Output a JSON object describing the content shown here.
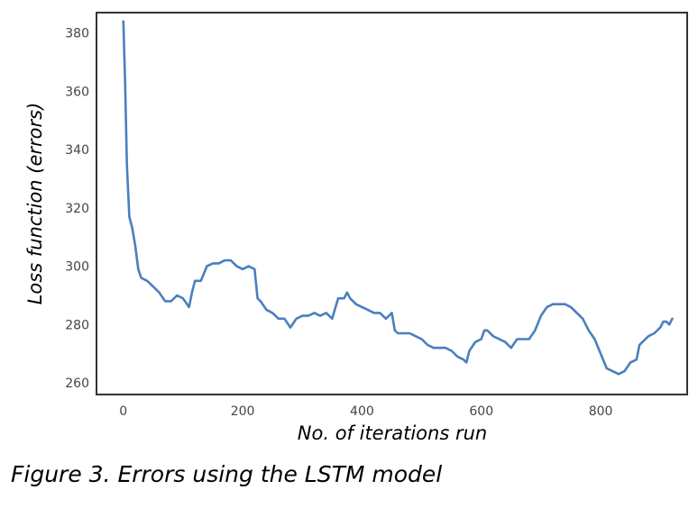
{
  "caption": "Figure 3. Errors using the LSTM model",
  "chart_data": {
    "type": "line",
    "title": "",
    "xlabel": "No. of iterations run",
    "ylabel": "Loss function (errors)",
    "xlim": [
      -45,
      945
    ],
    "ylim": [
      256,
      387
    ],
    "xticks": [
      0,
      200,
      400,
      600,
      800
    ],
    "yticks": [
      260,
      280,
      300,
      320,
      340,
      360,
      380
    ],
    "grid": false,
    "line_color": "#4a7fbf",
    "series": [
      {
        "name": "",
        "points": [
          [
            0,
            384
          ],
          [
            3,
            362
          ],
          [
            6,
            335
          ],
          [
            10,
            317
          ],
          [
            15,
            313
          ],
          [
            20,
            307
          ],
          [
            25,
            299
          ],
          [
            30,
            296
          ],
          [
            40,
            295
          ],
          [
            50,
            293
          ],
          [
            60,
            291
          ],
          [
            70,
            288
          ],
          [
            80,
            288
          ],
          [
            90,
            290
          ],
          [
            100,
            289
          ],
          [
            110,
            286
          ],
          [
            115,
            291
          ],
          [
            120,
            295
          ],
          [
            130,
            295
          ],
          [
            140,
            300
          ],
          [
            150,
            301
          ],
          [
            160,
            301
          ],
          [
            170,
            302
          ],
          [
            180,
            302
          ],
          [
            190,
            300
          ],
          [
            200,
            299
          ],
          [
            210,
            300
          ],
          [
            220,
            299
          ],
          [
            225,
            289
          ],
          [
            230,
            288
          ],
          [
            240,
            285
          ],
          [
            250,
            284
          ],
          [
            260,
            282
          ],
          [
            270,
            282
          ],
          [
            280,
            279
          ],
          [
            290,
            282
          ],
          [
            300,
            283
          ],
          [
            310,
            283
          ],
          [
            320,
            284
          ],
          [
            330,
            283
          ],
          [
            340,
            284
          ],
          [
            350,
            282
          ],
          [
            360,
            289
          ],
          [
            370,
            289
          ],
          [
            375,
            291
          ],
          [
            380,
            289
          ],
          [
            390,
            287
          ],
          [
            400,
            286
          ],
          [
            410,
            285
          ],
          [
            420,
            284
          ],
          [
            430,
            284
          ],
          [
            440,
            282
          ],
          [
            450,
            284
          ],
          [
            455,
            278
          ],
          [
            460,
            277
          ],
          [
            470,
            277
          ],
          [
            480,
            277
          ],
          [
            490,
            276
          ],
          [
            500,
            275
          ],
          [
            510,
            273
          ],
          [
            520,
            272
          ],
          [
            530,
            272
          ],
          [
            540,
            272
          ],
          [
            550,
            271
          ],
          [
            560,
            269
          ],
          [
            570,
            268
          ],
          [
            575,
            267
          ],
          [
            580,
            271
          ],
          [
            590,
            274
          ],
          [
            600,
            275
          ],
          [
            605,
            278
          ],
          [
            610,
            278
          ],
          [
            620,
            276
          ],
          [
            630,
            275
          ],
          [
            640,
            274
          ],
          [
            645,
            273
          ],
          [
            650,
            272
          ],
          [
            660,
            275
          ],
          [
            670,
            275
          ],
          [
            680,
            275
          ],
          [
            690,
            278
          ],
          [
            700,
            283
          ],
          [
            710,
            286
          ],
          [
            720,
            287
          ],
          [
            730,
            287
          ],
          [
            740,
            287
          ],
          [
            750,
            286
          ],
          [
            760,
            284
          ],
          [
            770,
            282
          ],
          [
            780,
            278
          ],
          [
            790,
            275
          ],
          [
            800,
            270
          ],
          [
            810,
            265
          ],
          [
            820,
            264
          ],
          [
            830,
            263
          ],
          [
            840,
            264
          ],
          [
            850,
            267
          ],
          [
            860,
            268
          ],
          [
            865,
            273
          ],
          [
            870,
            274
          ],
          [
            880,
            276
          ],
          [
            890,
            277
          ],
          [
            900,
            279
          ],
          [
            905,
            281
          ],
          [
            910,
            281
          ],
          [
            915,
            280
          ],
          [
            920,
            282
          ]
        ]
      }
    ]
  }
}
